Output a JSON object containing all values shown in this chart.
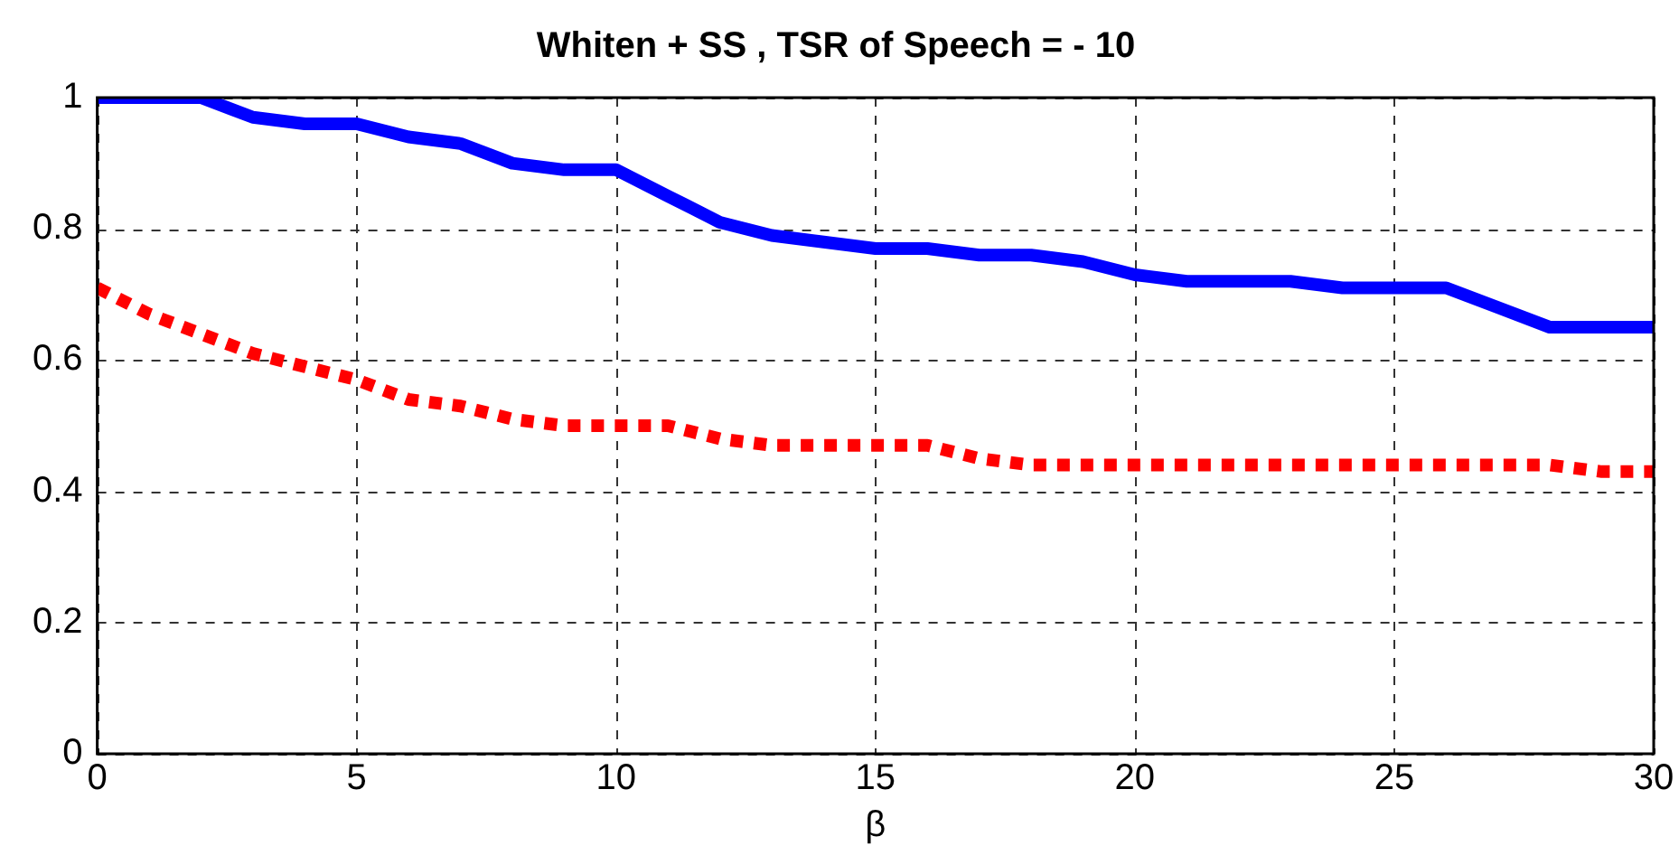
{
  "chart_data": {
    "type": "line",
    "title": "Whiten + SS , TSR of Speech = - 10",
    "xlabel": "β",
    "x": [
      0,
      1,
      2,
      3,
      4,
      5,
      6,
      7,
      8,
      9,
      10,
      11,
      12,
      13,
      14,
      15,
      16,
      17,
      18,
      19,
      20,
      21,
      22,
      23,
      24,
      25,
      26,
      27,
      28,
      29,
      30
    ],
    "series": [
      {
        "color": "#0000ff",
        "line_style": "solid",
        "values": [
          1,
          1,
          1,
          0.97,
          0.96,
          0.96,
          0.94,
          0.93,
          0.9,
          0.89,
          0.89,
          0.85,
          0.81,
          0.79,
          0.78,
          0.77,
          0.77,
          0.76,
          0.76,
          0.75,
          0.73,
          0.72,
          0.72,
          0.72,
          0.71,
          0.71,
          0.71,
          0.68,
          0.65,
          0.65,
          0.65
        ]
      },
      {
        "color": "#ff0000",
        "line_style": "dotted",
        "values": [
          0.71,
          0.67,
          0.64,
          0.61,
          0.59,
          0.57,
          0.54,
          0.53,
          0.51,
          0.5,
          0.5,
          0.5,
          0.48,
          0.47,
          0.47,
          0.47,
          0.47,
          0.45,
          0.44,
          0.44,
          0.44,
          0.44,
          0.44,
          0.44,
          0.44,
          0.44,
          0.44,
          0.44,
          0.44,
          0.43,
          0.43
        ]
      }
    ],
    "xlim": [
      0,
      30
    ],
    "xticks": [
      0,
      5,
      10,
      15,
      20,
      25,
      30
    ],
    "ylim": [
      0,
      1
    ],
    "yticks": [
      0,
      0.2,
      0.4,
      0.6,
      0.8,
      1
    ],
    "grid": true,
    "legend": false,
    "marker": "none"
  }
}
